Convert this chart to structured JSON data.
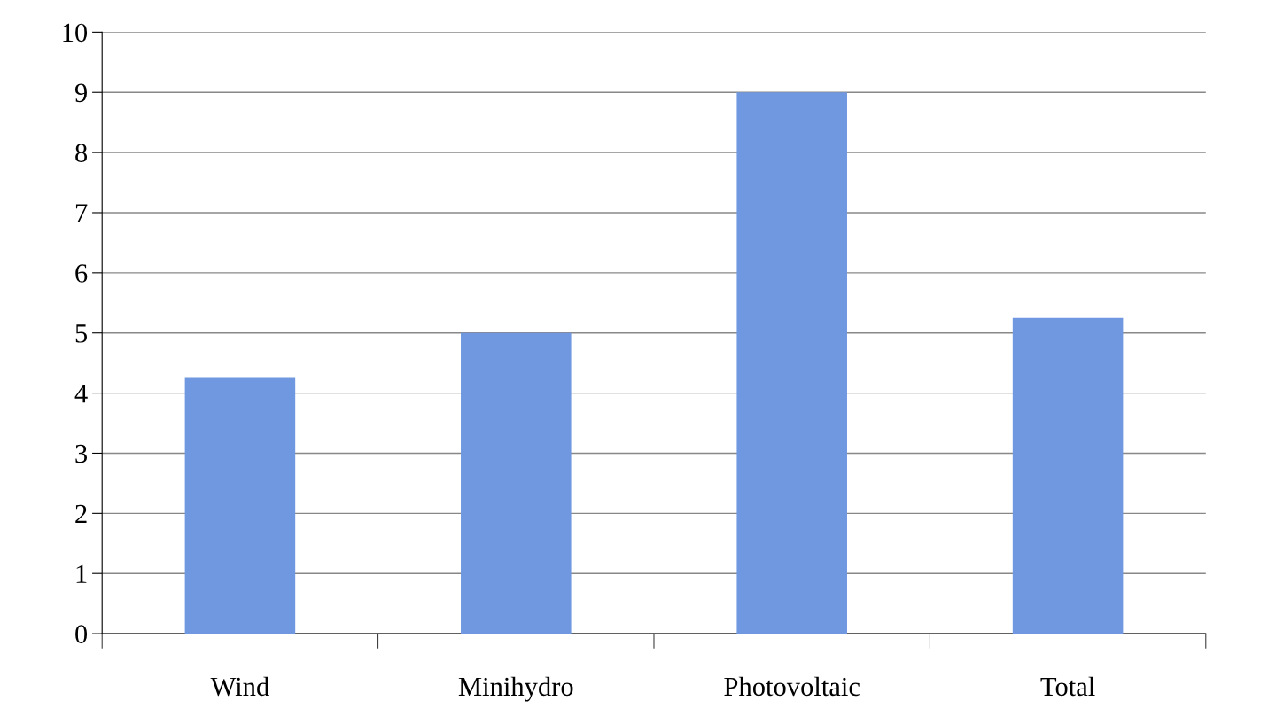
{
  "chart_data": {
    "type": "bar",
    "categories": [
      "Wind",
      "Minihydro",
      "Photovoltaic",
      "Total"
    ],
    "values": [
      4.25,
      5.0,
      9.0,
      5.25
    ],
    "color": "#7098e0",
    "ylim": [
      0,
      10
    ],
    "yticks": [
      0,
      1,
      2,
      3,
      4,
      5,
      6,
      7,
      8,
      9,
      10
    ],
    "grid": "y",
    "legend": false
  }
}
